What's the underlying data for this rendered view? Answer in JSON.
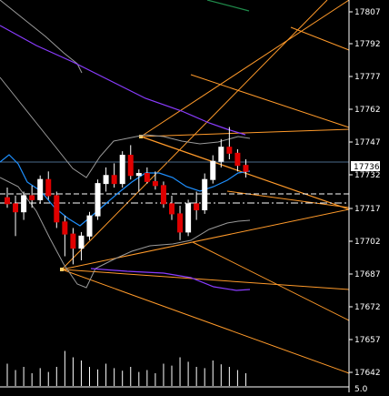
{
  "colors": {
    "background": "#000000",
    "bull_body": "#ffffff",
    "bear_body": "#e00000",
    "wick": "#ffffff",
    "channel": "#ff9a2a",
    "bollinger": "#9a9a9a",
    "ma_slow": "#8a3cff",
    "ma_fast": "#1e90ff",
    "ma_green": "#1f8a4a",
    "price_marker_bg": "#ffffff",
    "price_marker_fg": "#000000",
    "axis_text": "#ffffff",
    "volume": "#ffffff",
    "current_line": "#4a6a8a"
  },
  "price_axis": {
    "ticks": [
      "17807",
      "17792",
      "17777",
      "17762",
      "17747",
      "17732",
      "17717",
      "17702",
      "17687",
      "17672",
      "17657",
      "17642"
    ],
    "current_price": "17736",
    "bottom_label": "5.0"
  },
  "chart_data": {
    "type": "candlestick",
    "ylim": [
      17637,
      17815
    ],
    "candles": [
      {
        "o": 17723,
        "h": 17728,
        "l": 17718,
        "c": 17720
      },
      {
        "o": 17720,
        "h": 17724,
        "l": 17704,
        "c": 17716
      },
      {
        "o": 17716,
        "h": 17726,
        "l": 17712,
        "c": 17724
      },
      {
        "o": 17724,
        "h": 17729,
        "l": 17718,
        "c": 17722
      },
      {
        "o": 17722,
        "h": 17734,
        "l": 17720,
        "c": 17732
      },
      {
        "o": 17732,
        "h": 17736,
        "l": 17722,
        "c": 17724
      },
      {
        "o": 17724,
        "h": 17726,
        "l": 17708,
        "c": 17711
      },
      {
        "o": 17711,
        "h": 17714,
        "l": 17694,
        "c": 17705
      },
      {
        "o": 17705,
        "h": 17708,
        "l": 17690,
        "c": 17698
      },
      {
        "o": 17698,
        "h": 17706,
        "l": 17692,
        "c": 17704
      },
      {
        "o": 17704,
        "h": 17716,
        "l": 17702,
        "c": 17714
      },
      {
        "o": 17714,
        "h": 17732,
        "l": 17712,
        "c": 17730
      },
      {
        "o": 17730,
        "h": 17738,
        "l": 17726,
        "c": 17734
      },
      {
        "o": 17734,
        "h": 17740,
        "l": 17728,
        "c": 17730
      },
      {
        "o": 17730,
        "h": 17746,
        "l": 17728,
        "c": 17744
      },
      {
        "o": 17744,
        "h": 17749,
        "l": 17732,
        "c": 17734
      },
      {
        "o": 17734,
        "h": 17737,
        "l": 17726,
        "c": 17735
      },
      {
        "o": 17735,
        "h": 17738,
        "l": 17730,
        "c": 17731
      },
      {
        "o": 17731,
        "h": 17736,
        "l": 17727,
        "c": 17729
      },
      {
        "o": 17729,
        "h": 17731,
        "l": 17718,
        "c": 17720
      },
      {
        "o": 17720,
        "h": 17724,
        "l": 17712,
        "c": 17715
      },
      {
        "o": 17715,
        "h": 17719,
        "l": 17702,
        "c": 17706
      },
      {
        "o": 17706,
        "h": 17722,
        "l": 17704,
        "c": 17720
      },
      {
        "o": 17720,
        "h": 17726,
        "l": 17712,
        "c": 17717
      },
      {
        "o": 17717,
        "h": 17735,
        "l": 17715,
        "c": 17732
      },
      {
        "o": 17732,
        "h": 17744,
        "l": 17730,
        "c": 17741
      },
      {
        "o": 17741,
        "h": 17752,
        "l": 17738,
        "c": 17748
      },
      {
        "o": 17748,
        "h": 17758,
        "l": 17742,
        "c": 17745
      },
      {
        "o": 17745,
        "h": 17747,
        "l": 17736,
        "c": 17739
      },
      {
        "o": 17739,
        "h": 17742,
        "l": 17733,
        "c": 17736
      }
    ],
    "volumes": [
      0.35,
      0.25,
      0.3,
      0.2,
      0.28,
      0.22,
      0.3,
      0.55,
      0.45,
      0.4,
      0.3,
      0.26,
      0.35,
      0.28,
      0.24,
      0.3,
      0.22,
      0.25,
      0.2,
      0.35,
      0.32,
      0.45,
      0.38,
      0.3,
      0.28,
      0.4,
      0.34,
      0.3,
      0.25,
      0.2
    ]
  }
}
